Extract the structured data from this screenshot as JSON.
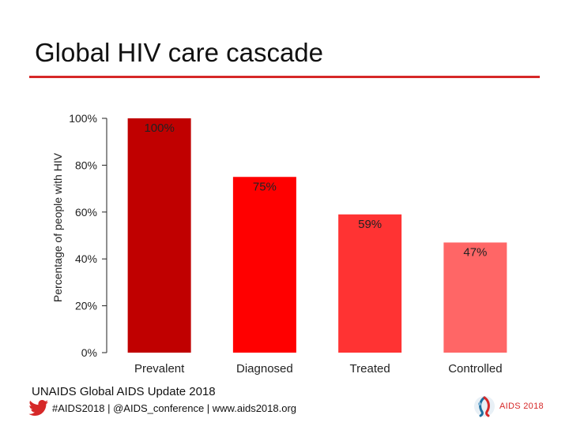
{
  "slide": {
    "title": "Global HIV care cascade",
    "source": "UNAIDS Global AIDS Update 2018",
    "footer_links": "#AIDS2018 | @AIDS_conference | www.aids2018.org",
    "logo_text": "AIDS 2018",
    "accent_color": "#d62828",
    "icons": {
      "social": "twitter-bird-icon",
      "logo": "aids2018-logo-icon"
    }
  },
  "chart_data": {
    "type": "bar",
    "title": "",
    "xlabel": "",
    "ylabel": "Percentage of people with HIV",
    "categories": [
      "Prevalent",
      "Diagnosed",
      "Treated",
      "Controlled"
    ],
    "values": [
      100,
      75,
      59,
      47
    ],
    "value_labels": [
      "100%",
      "75%",
      "59%",
      "47%"
    ],
    "colors": [
      "#c00000",
      "#ff0000",
      "#ff3333",
      "#ff6666"
    ],
    "ylim": [
      0,
      100
    ],
    "yticks": [
      0,
      20,
      40,
      60,
      80,
      100
    ],
    "ytick_labels": [
      "0%",
      "20%",
      "40%",
      "60%",
      "80%",
      "100%"
    ],
    "grid": false,
    "legend": "none"
  }
}
